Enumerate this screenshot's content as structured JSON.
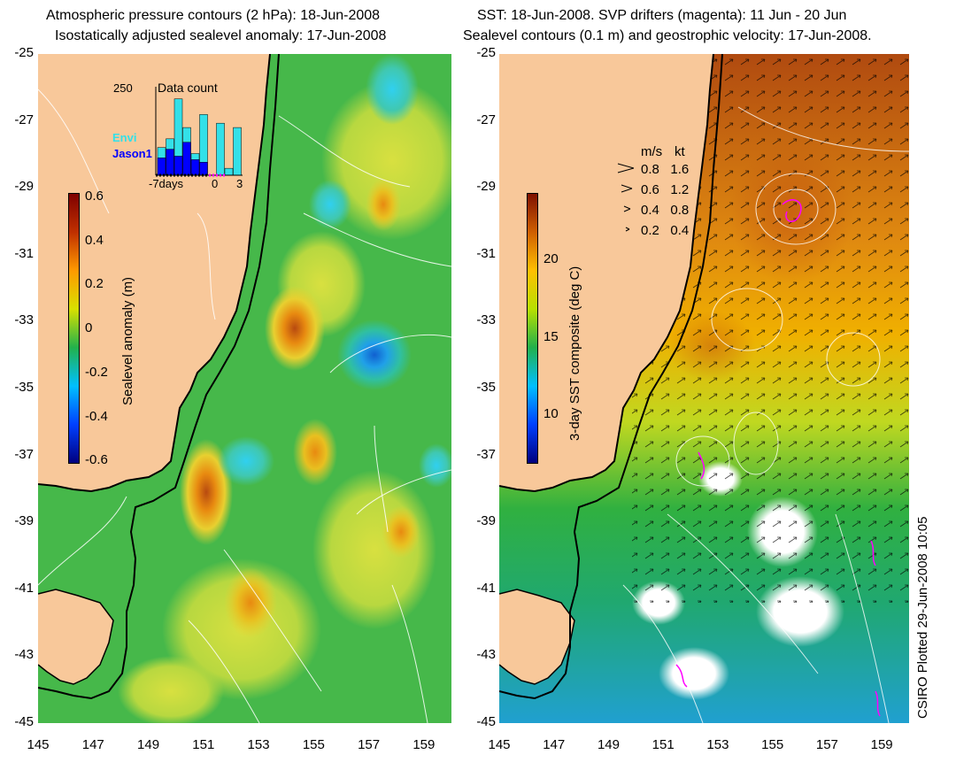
{
  "left_panel": {
    "title_line1": "Atmospheric pressure contours (2 hPa): 18-Jun-2008",
    "title_line2": "Isostatically adjusted sealevel anomaly: 17-Jun-2008",
    "colorbar": {
      "label": "Sealevel anomaly (m)",
      "ticks": [
        "0.6",
        "0.4",
        "0.2",
        "0",
        "-0.2",
        "-0.4",
        "-0.6"
      ],
      "range": [
        -0.6,
        0.6
      ],
      "colors": [
        "#00007f",
        "#0040ff",
        "#00bfff",
        "#22b14c",
        "#d8e000",
        "#ff9a00",
        "#c03000",
        "#7f0000"
      ]
    },
    "inset": {
      "title": "Data count",
      "ymax_label": "250",
      "legend": [
        {
          "name": "Envi",
          "color": "#33e0e8"
        },
        {
          "name": "Jason1",
          "color": "#0000ff"
        }
      ],
      "x_labels": [
        "-7days",
        "0",
        "3"
      ],
      "bars_envi": [
        0.32,
        0.42,
        0.88,
        0.55,
        0.25,
        0.7,
        0.0,
        0.6,
        0.08,
        0.55
      ],
      "bars_jason": [
        0.2,
        0.3,
        0.22,
        0.38,
        0.18,
        0.15,
        0.0,
        0.0,
        0.0,
        0.0
      ]
    }
  },
  "right_panel": {
    "title_line1": "SST: 18-Jun-2008. SVP drifters (magenta): 11 Jun - 20 Jun",
    "title_line2": "Sealevel contours (0.1 m) and geostrophic velocity: 17-Jun-2008.",
    "colorbar": {
      "label": "3-day SST composite (deg C)",
      "ticks": [
        "20",
        "15",
        "10"
      ],
      "range": [
        7,
        25
      ],
      "colors": [
        "#00007f",
        "#0040ff",
        "#00bfff",
        "#22b14c",
        "#b8e000",
        "#ffc000",
        "#d06000",
        "#7f1000"
      ]
    },
    "velocity_legend": {
      "header_ms": "m/s",
      "header_kt": "kt",
      "rows": [
        {
          "ms": "0.8",
          "kt": "1.6"
        },
        {
          "ms": "0.6",
          "kt": "1.2"
        },
        {
          "ms": "0.4",
          "kt": "0.8"
        },
        {
          "ms": "0.2",
          "kt": "0.4"
        }
      ]
    }
  },
  "axes": {
    "y_ticks": [
      "-25",
      "-27",
      "-29",
      "-31",
      "-33",
      "-35",
      "-37",
      "-39",
      "-41",
      "-43",
      "-45"
    ],
    "x_ticks": [
      "145",
      "147",
      "149",
      "151",
      "153",
      "155",
      "157",
      "159"
    ],
    "lat_range": [
      -45,
      -25
    ],
    "lon_range": [
      145,
      160
    ]
  },
  "credit": "CSIRO Plotted 29-Jun-2008 10:05",
  "colors": {
    "land": "#f8c89a",
    "coast": "#000000",
    "contour": "#ffffff"
  }
}
